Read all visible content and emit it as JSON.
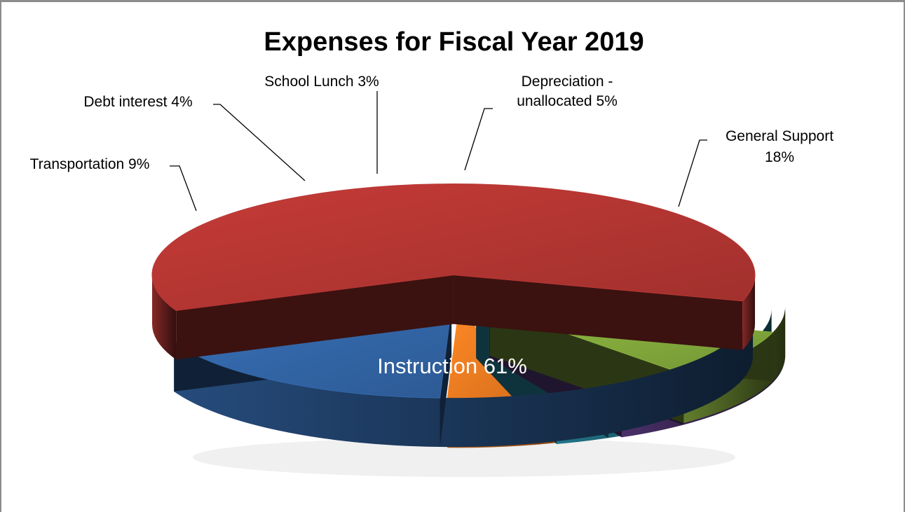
{
  "chart_data": {
    "type": "pie",
    "title": "Expenses for Fiscal Year 2019",
    "categories": [
      "Instruction",
      "Transportation",
      "Debt interest",
      "School Lunch",
      "Depreciation - unallocated",
      "General Support"
    ],
    "values": [
      61,
      9,
      4,
      3,
      5,
      18
    ],
    "unit": "%",
    "labels": [
      {
        "lines": [
          "Instruction 61%"
        ]
      },
      {
        "lines": [
          "Transportation 9%"
        ]
      },
      {
        "lines": [
          "Debt interest  4%"
        ]
      },
      {
        "lines": [
          "School Lunch  3%"
        ]
      },
      {
        "lines": [
          "Depreciation -",
          "unallocated 5%"
        ]
      },
      {
        "lines": [
          "General Support",
          "18%"
        ]
      }
    ],
    "colors": [
      "#a8322f",
      "#7a9e38",
      "#5c3d84",
      "#2b93ad",
      "#e0741f",
      "#2f5f9c"
    ],
    "legend": "none",
    "style": "3d-exploded"
  }
}
